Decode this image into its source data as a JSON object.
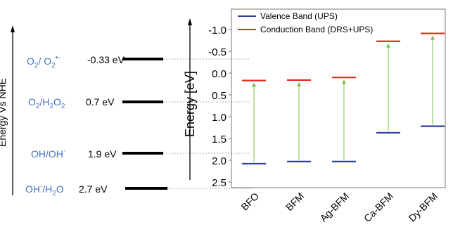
{
  "colors": {
    "label_blue": "#4472c4",
    "valence": "#2f3f9e",
    "conduction": "#e8261c",
    "arrow": "#7cbf4f",
    "level_bar": "#000000"
  },
  "left_panel": {
    "axis_label": "Energy Vs NHE",
    "levels": [
      {
        "id": "o2",
        "label_main": "O",
        "label_sub1": "2",
        "label_sep": "/ O",
        "label_sub2": "2",
        "label_sup": "•-",
        "value_text": "-0.33 eV",
        "value": -0.33
      },
      {
        "id": "h2o2",
        "label_main": "O",
        "label_sub1": "2",
        "label_sep": "/H",
        "label_sub2": "2",
        "label_sep2": "O",
        "label_sub3": "2",
        "value_text": "0.7 eV",
        "value": 0.7
      },
      {
        "id": "oh",
        "label_main": "OH/OH",
        "label_sup": "·",
        "value_text": "1.9 eV",
        "value": 1.9
      },
      {
        "id": "h2o",
        "label_main": "OH",
        "label_sup": "-",
        "label_sep": "/H",
        "label_sub1": "2",
        "label_sep2": "O",
        "value_text": "2.7 eV",
        "value": 2.7
      }
    ]
  },
  "chart_data": {
    "type": "scatter",
    "ylabel": "Energy [eV]",
    "ylim": [
      -1.3,
      2.6
    ],
    "y_inverted": true,
    "yticks": [
      -1.0,
      -0.5,
      0.0,
      0.5,
      1.0,
      1.5,
      2.0,
      2.5
    ],
    "ytick_labels": [
      "-1.0",
      "-0.5",
      "0.0",
      "0.5",
      "1.0",
      "1.5",
      "2.0",
      "2.5"
    ],
    "categories": [
      "BFO",
      "BFM",
      "Ag-BFM",
      "Ca-BFM",
      "Dy-BFM"
    ],
    "legend_position": "top",
    "series": [
      {
        "name": "Valence Band (UPS)",
        "values": [
          2.08,
          2.03,
          2.03,
          1.37,
          1.22
        ]
      },
      {
        "name": "Conduction Band (DRS+UPS)",
        "values": [
          0.17,
          0.16,
          0.1,
          -0.73,
          -0.91
        ]
      }
    ]
  }
}
